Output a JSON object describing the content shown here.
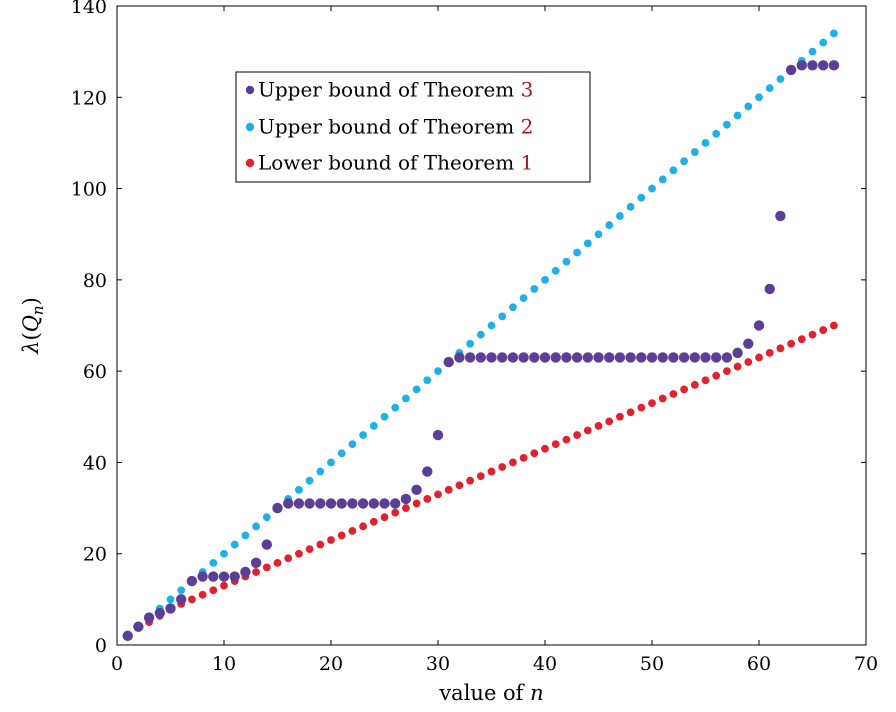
{
  "chart_data": {
    "type": "scatter",
    "title": "",
    "xlabel": "value of n",
    "ylabel": "λ(Q_n)",
    "xlim": [
      0,
      70
    ],
    "ylim": [
      0,
      140
    ],
    "x_ticks": [
      0,
      10,
      20,
      30,
      40,
      50,
      60,
      70
    ],
    "y_ticks": [
      0,
      20,
      40,
      60,
      80,
      100,
      120,
      140
    ],
    "grid": false,
    "legend_position": "top-left",
    "series": [
      {
        "name": "Upper bound of Theorem 3",
        "name_text": "Upper bound of Theorem ",
        "name_ref": "3",
        "color": "#5b3e96",
        "x": [
          1,
          2,
          3,
          4,
          5,
          6,
          7,
          8,
          9,
          10,
          11,
          12,
          13,
          14,
          15,
          16,
          17,
          18,
          19,
          20,
          21,
          22,
          23,
          24,
          25,
          26,
          27,
          28,
          29,
          30,
          31,
          32,
          33,
          34,
          35,
          36,
          37,
          38,
          39,
          40,
          41,
          42,
          43,
          44,
          45,
          46,
          47,
          48,
          49,
          50,
          51,
          52,
          53,
          54,
          55,
          56,
          57,
          58,
          59,
          60,
          61,
          62,
          63,
          64,
          65,
          66,
          67
        ],
        "y": [
          2,
          4,
          6,
          7,
          8,
          10,
          14,
          15,
          15,
          15,
          15,
          16,
          18,
          22,
          30,
          31,
          31,
          31,
          31,
          31,
          31,
          31,
          31,
          31,
          31,
          31,
          32,
          34,
          38,
          46,
          62,
          63,
          63,
          63,
          63,
          63,
          63,
          63,
          63,
          63,
          63,
          63,
          63,
          63,
          63,
          63,
          63,
          63,
          63,
          63,
          63,
          63,
          63,
          63,
          63,
          63,
          63,
          64,
          66,
          70,
          78,
          94,
          126,
          127,
          127,
          127,
          127
        ]
      },
      {
        "name": "Upper bound of Theorem 2",
        "name_text": "Upper bound of Theorem ",
        "name_ref": "2",
        "color": "#1fb1e6",
        "x": [
          1,
          2,
          3,
          4,
          5,
          6,
          7,
          8,
          9,
          10,
          11,
          12,
          13,
          14,
          15,
          16,
          17,
          18,
          19,
          20,
          21,
          22,
          23,
          24,
          25,
          26,
          27,
          28,
          29,
          30,
          31,
          32,
          33,
          34,
          35,
          36,
          37,
          38,
          39,
          40,
          41,
          42,
          43,
          44,
          45,
          46,
          47,
          48,
          49,
          50,
          51,
          52,
          53,
          54,
          55,
          56,
          57,
          58,
          59,
          60,
          61,
          62,
          63,
          64,
          65,
          66,
          67
        ],
        "y": [
          2,
          4,
          6,
          8,
          10,
          12,
          14,
          16,
          18,
          20,
          22,
          24,
          26,
          28,
          30,
          32,
          34,
          36,
          38,
          40,
          42,
          44,
          46,
          48,
          50,
          52,
          54,
          56,
          58,
          60,
          62,
          64,
          66,
          68,
          70,
          72,
          74,
          76,
          78,
          80,
          82,
          84,
          86,
          88,
          90,
          92,
          94,
          96,
          98,
          100,
          102,
          104,
          106,
          108,
          110,
          112,
          114,
          116,
          118,
          120,
          122,
          124,
          126,
          128,
          130,
          132,
          134
        ]
      },
      {
        "name": "Lower bound of Theorem 1",
        "name_text": "Lower bound of Theorem ",
        "name_ref": "1",
        "color": "#e0222f",
        "x": [
          1,
          2,
          3,
          4,
          5,
          6,
          7,
          8,
          9,
          10,
          11,
          12,
          13,
          14,
          15,
          16,
          17,
          18,
          19,
          20,
          21,
          22,
          23,
          24,
          25,
          26,
          27,
          28,
          29,
          30,
          31,
          32,
          33,
          34,
          35,
          36,
          37,
          38,
          39,
          40,
          41,
          42,
          43,
          44,
          45,
          46,
          47,
          48,
          49,
          50,
          51,
          52,
          53,
          54,
          55,
          56,
          57,
          58,
          59,
          60,
          61,
          62,
          63,
          64,
          65,
          66,
          67
        ],
        "y": [
          2,
          3.9,
          5,
          6.4,
          8,
          9,
          10,
          11,
          12,
          13,
          14,
          15,
          16,
          17,
          18,
          19,
          20,
          21,
          22,
          23,
          24,
          25,
          26,
          27,
          28,
          29,
          30,
          31,
          32,
          33,
          34,
          35,
          36,
          37,
          38,
          39,
          40,
          41,
          42,
          43,
          44,
          45,
          46,
          47,
          48,
          49,
          50,
          51,
          52,
          53,
          54,
          55,
          56,
          57,
          58,
          59,
          60,
          61,
          62,
          63,
          64,
          65,
          66,
          67,
          68,
          69,
          70
        ]
      }
    ]
  }
}
